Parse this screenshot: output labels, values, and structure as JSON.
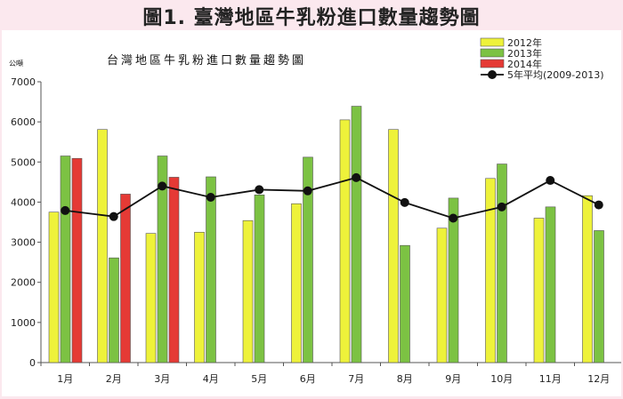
{
  "figure_title": "圖1. 臺灣地區牛乳粉進口數量趨勢圖",
  "colors": {
    "page_bg": "#fbe8ee",
    "s2012": "#eef23a",
    "s2013": "#7cc243",
    "s2014": "#e53a35",
    "avg": "#111111"
  },
  "chart_data": {
    "type": "bar",
    "title": "台灣地區牛乳粉進口數量趨勢圖",
    "ylabel": "公噸",
    "xlabel": "",
    "ylim": [
      0,
      7000
    ],
    "yticks": [
      0,
      1000,
      2000,
      3000,
      4000,
      5000,
      6000,
      7000
    ],
    "grid": false,
    "legend_position": "top-right",
    "categories": [
      "1月",
      "2月",
      "3月",
      "4月",
      "5月",
      "6月",
      "7月",
      "8月",
      "9月",
      "10月",
      "11月",
      "12月"
    ],
    "series": [
      {
        "name": "2012年",
        "type": "bar",
        "values": [
          3750,
          5810,
          3220,
          3250,
          3540,
          3960,
          6050,
          5810,
          3350,
          4590,
          3600,
          4160
        ]
      },
      {
        "name": "2013年",
        "type": "bar",
        "values": [
          5150,
          2610,
          5150,
          4630,
          4180,
          5120,
          6390,
          2920,
          4100,
          4950,
          3880,
          3290
        ]
      },
      {
        "name": "2014年",
        "type": "bar",
        "values": [
          5090,
          4200,
          4620,
          null,
          null,
          null,
          null,
          null,
          null,
          null,
          null,
          null
        ]
      },
      {
        "name": "5年平均(2009-2013)",
        "type": "line",
        "values": [
          3790,
          3640,
          4400,
          4120,
          4310,
          4280,
          4610,
          3990,
          3600,
          3880,
          4540,
          3930
        ]
      }
    ]
  }
}
